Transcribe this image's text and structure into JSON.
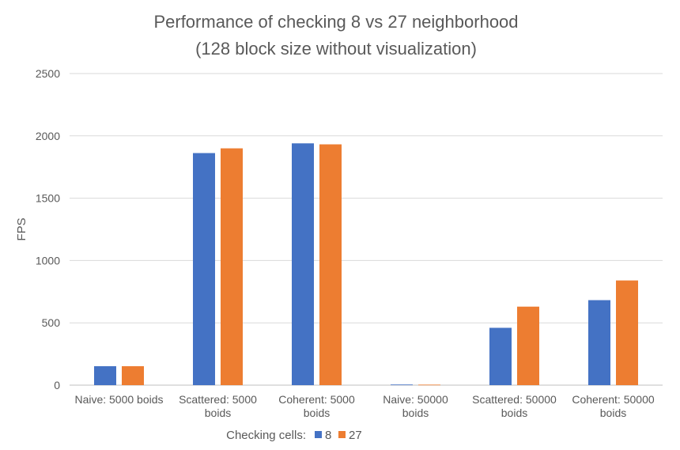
{
  "chart_data": {
    "type": "bar",
    "title": "Performance of checking 8 vs 27 neighborhood",
    "subtitle": "(128 block size without visualization)",
    "xlabel": "",
    "ylabel": "FPS",
    "ylim": [
      0,
      2500
    ],
    "yticks": [
      0,
      500,
      1000,
      1500,
      2000,
      2500
    ],
    "grid": true,
    "legend_position": "bottom",
    "legend_title": "Checking cells:",
    "categories": [
      [
        "Naive: 5000 boids"
      ],
      [
        "Scattered: 5000",
        "boids"
      ],
      [
        "Coherent: 5000",
        "boids"
      ],
      [
        "Naive: 50000",
        "boids"
      ],
      [
        "Scattered: 50000",
        "boids"
      ],
      [
        "Coherent: 50000",
        "boids"
      ]
    ],
    "series": [
      {
        "name": "8",
        "color": "#4472C4",
        "values": [
          152,
          1862,
          1940,
          5,
          460,
          682
        ]
      },
      {
        "name": "27",
        "color": "#ED7D31",
        "values": [
          152,
          1900,
          1932,
          4,
          630,
          840
        ]
      }
    ]
  }
}
